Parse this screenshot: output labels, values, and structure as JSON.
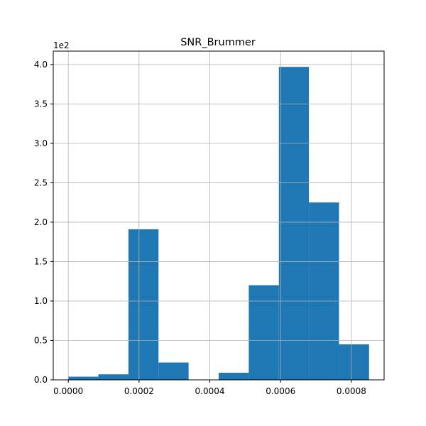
{
  "chart_data": {
    "type": "bar",
    "title": "SNR_Brummer",
    "xlabel": "",
    "ylabel": "",
    "y_offset_label": "1e2",
    "bar_color": "#1f77b4",
    "grid": true,
    "xlim": [
      -4.25e-05,
      0.0008925
    ],
    "ylim": [
      0,
      4.17
    ],
    "bin_edges": [
      0.0,
      8.5e-05,
      0.00017,
      0.000255,
      0.00034,
      0.000425,
      0.00051,
      0.000595,
      0.00068,
      0.000765,
      0.00085
    ],
    "values": [
      0.04,
      0.07,
      1.91,
      0.22,
      0.0,
      0.09,
      1.2,
      3.97,
      2.25,
      0.45
    ],
    "x_ticks": [
      0.0,
      0.0002,
      0.0004,
      0.0006,
      0.0008
    ],
    "x_tick_labels": [
      "0.0000",
      "0.0002",
      "0.0004",
      "0.0006",
      "0.0008"
    ],
    "y_ticks": [
      0.0,
      0.5,
      1.0,
      1.5,
      2.0,
      2.5,
      3.0,
      3.5,
      4.0
    ],
    "y_tick_labels": [
      "0.0",
      "0.5",
      "1.0",
      "1.5",
      "2.0",
      "2.5",
      "3.0",
      "3.5",
      "4.0"
    ]
  }
}
